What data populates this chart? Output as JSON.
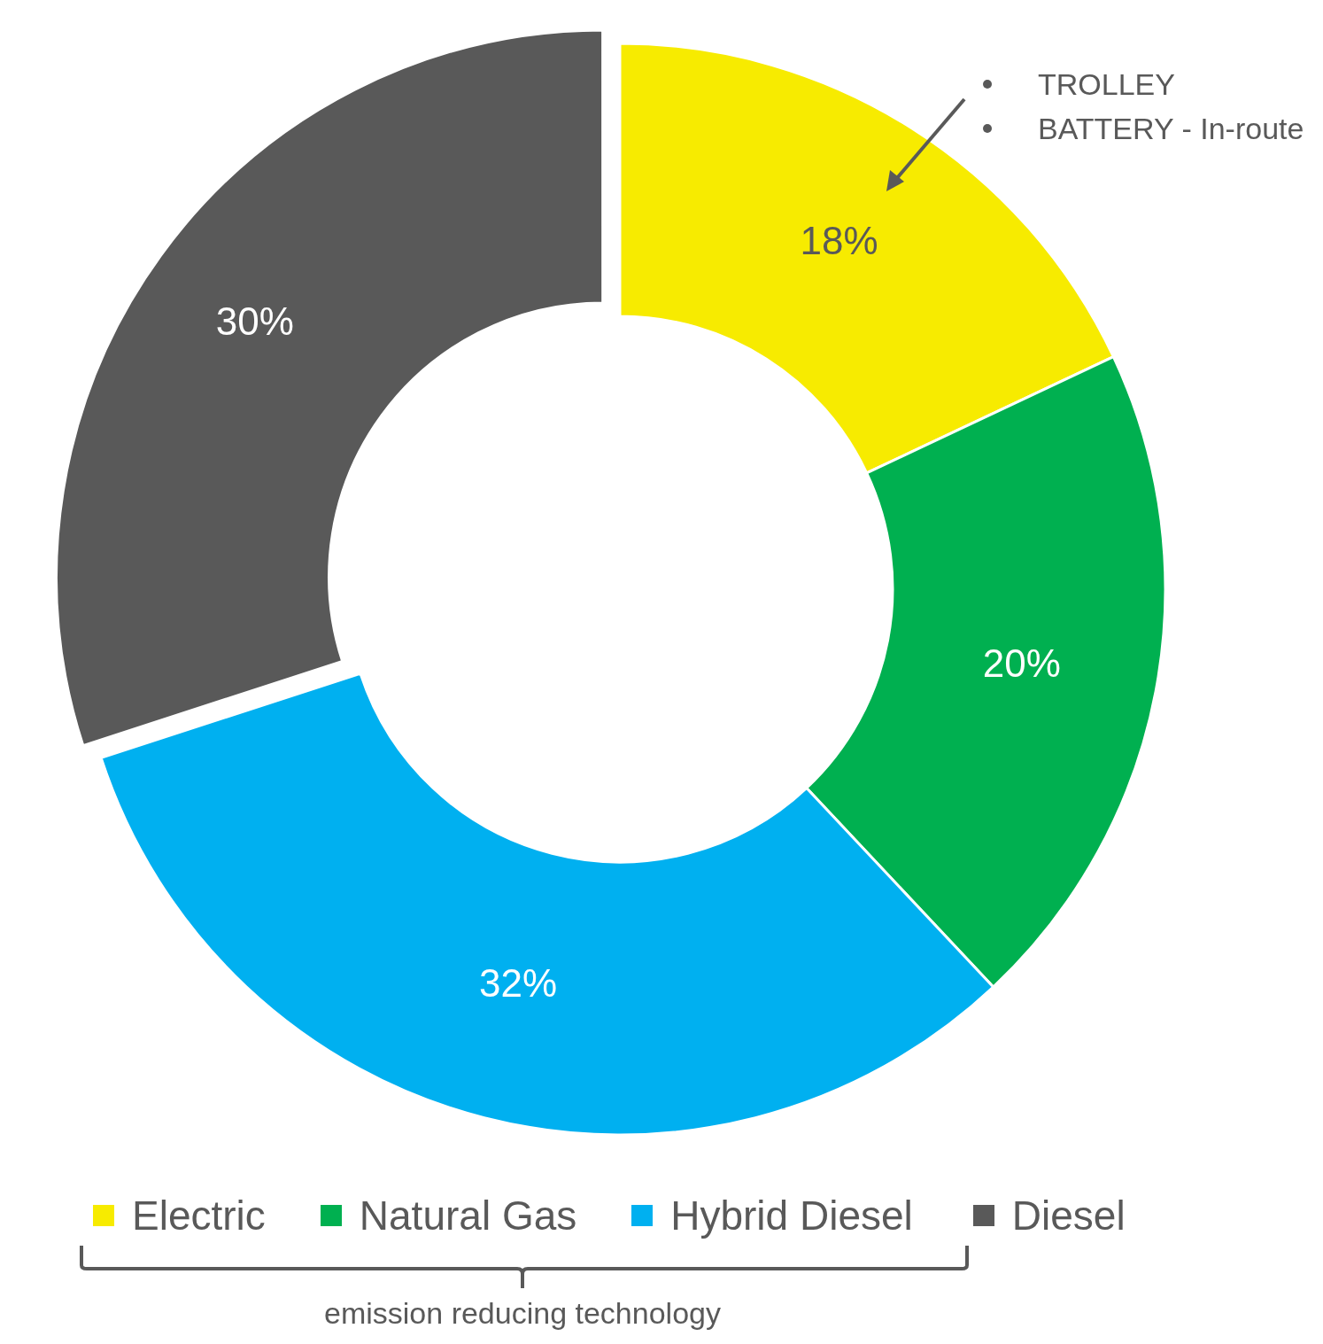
{
  "chart_data": {
    "type": "donut",
    "categories": [
      "Electric",
      "Natural Gas",
      "Hybrid Diesel",
      "Diesel"
    ],
    "values": [
      18,
      20,
      32,
      30
    ],
    "colors": [
      "#f7eb00",
      "#00b050",
      "#00b0f0",
      "#595959"
    ],
    "value_labels": [
      "18%",
      "20%",
      "32%",
      "30%"
    ],
    "legend": "bottom",
    "annotations": [
      "TROLLEY",
      "BATTERY - In-route",
      "emission reducing technology"
    ]
  }
}
